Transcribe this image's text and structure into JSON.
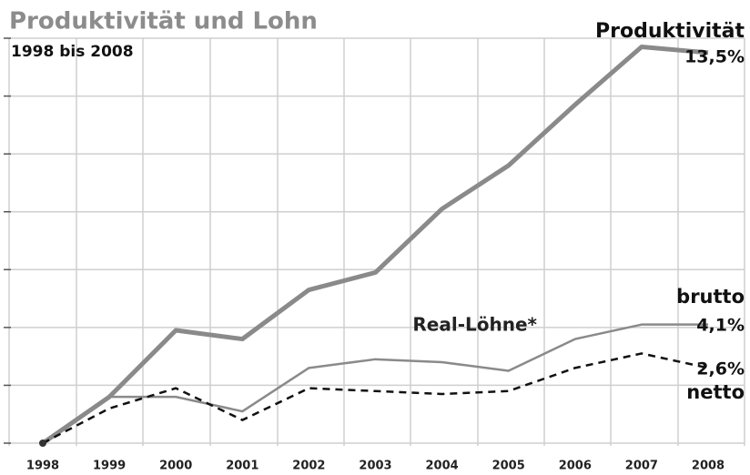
{
  "chart_data": {
    "type": "line",
    "title": "Produktivität und Lohn",
    "subtitle": "1998 bis 2008",
    "categories": [
      "1998",
      "1999",
      "2000",
      "2001",
      "2002",
      "2003",
      "2004",
      "2005",
      "2006",
      "2007",
      "2008"
    ],
    "series": [
      {
        "name": "Produktivität",
        "color": "#8a8a8a",
        "values": [
          0,
          1.6,
          3.9,
          3.6,
          5.3,
          5.9,
          8.1,
          9.6,
          11.7,
          13.7,
          13.5
        ],
        "value_labels": [
          null,
          null,
          null,
          null,
          null,
          null,
          null,
          null,
          null,
          null,
          "13,5%"
        ]
      },
      {
        "name": "brutto",
        "color": "#8a8a8a",
        "values": [
          0,
          1.6,
          1.6,
          1.1,
          2.6,
          2.9,
          2.8,
          2.5,
          3.6,
          4.1,
          4.1
        ],
        "value_labels": [
          null,
          null,
          null,
          null,
          null,
          null,
          null,
          null,
          null,
          null,
          "4,1%"
        ]
      },
      {
        "name": "netto",
        "color": "#111111",
        "values": [
          0,
          1.2,
          1.9,
          0.8,
          1.9,
          1.8,
          1.7,
          1.8,
          2.6,
          3.1,
          2.6
        ],
        "value_labels": [
          null,
          null,
          null,
          null,
          null,
          null,
          null,
          null,
          null,
          null,
          "2,6%"
        ]
      }
    ],
    "annotations": [
      "Real-Löhne*"
    ],
    "ylim": [
      0,
      14
    ],
    "yticks": [
      0,
      2,
      4,
      6,
      8,
      10,
      12,
      14
    ],
    "grid": true
  }
}
